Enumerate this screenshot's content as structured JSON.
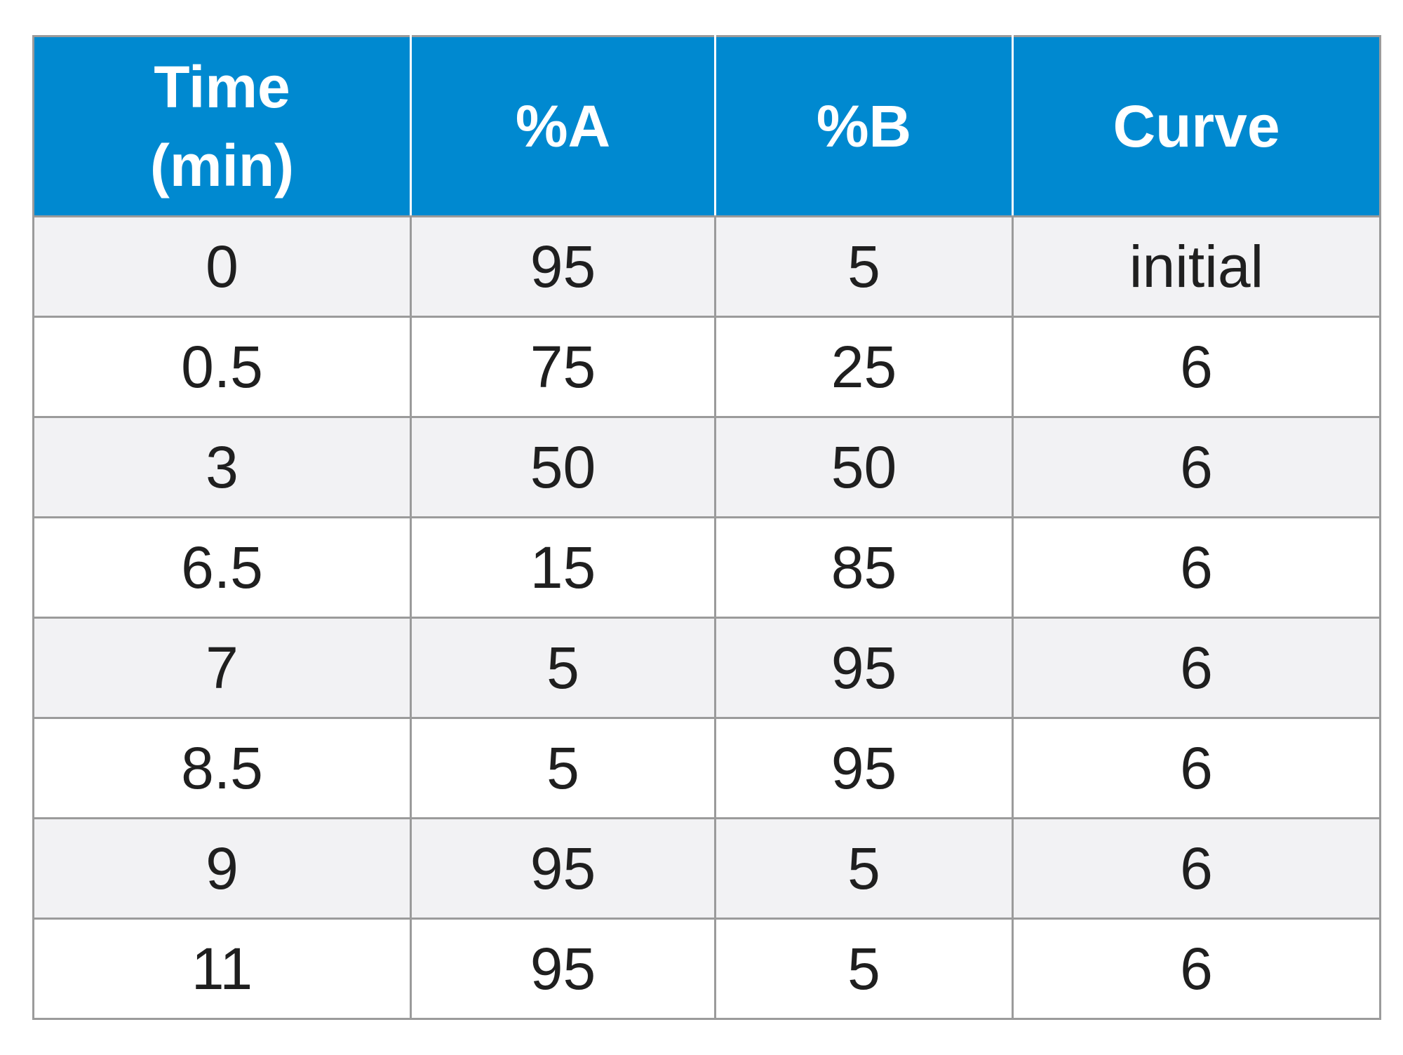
{
  "table": {
    "headers": [
      {
        "lines": [
          "Time",
          "(min)"
        ]
      },
      {
        "lines": [
          "%A"
        ]
      },
      {
        "lines": [
          "%B"
        ]
      },
      {
        "lines": [
          "Curve"
        ]
      }
    ],
    "rows": [
      [
        "0",
        "95",
        "5",
        "initial"
      ],
      [
        "0.5",
        "75",
        "25",
        "6"
      ],
      [
        "3",
        "50",
        "50",
        "6"
      ],
      [
        "6.5",
        "15",
        "85",
        "6"
      ],
      [
        "7",
        "5",
        "95",
        "6"
      ],
      [
        "8.5",
        "5",
        "95",
        "6"
      ],
      [
        "9",
        "95",
        "5",
        "6"
      ],
      [
        "11",
        "95",
        "5",
        "6"
      ]
    ]
  },
  "colors": {
    "header_bg": "#0089d0",
    "header_text": "#ffffff",
    "row_alt_bg": "#f2f2f4",
    "grid": "#9b9b9b"
  }
}
